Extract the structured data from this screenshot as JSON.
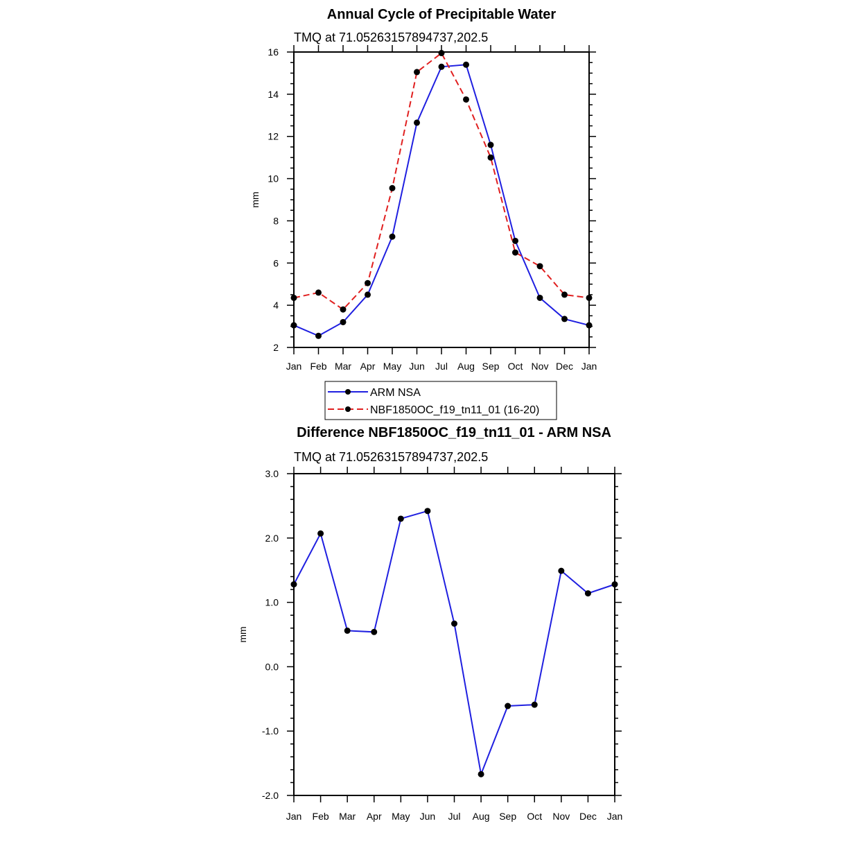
{
  "chart_data": [
    {
      "type": "line",
      "title": "Annual Cycle of Precipitable Water",
      "subtitle": "TMQ at 71.05263157894737,202.5",
      "xlabel": "",
      "ylabel": "mm",
      "categories": [
        "Jan",
        "Feb",
        "Mar",
        "Apr",
        "May",
        "Jun",
        "Jul",
        "Aug",
        "Sep",
        "Oct",
        "Nov",
        "Dec",
        "Jan"
      ],
      "ylim": [
        2,
        16
      ],
      "yticks": [
        "2",
        "4",
        "6",
        "8",
        "10",
        "12",
        "14",
        "16"
      ],
      "grid": false,
      "legend_position": "below",
      "series": [
        {
          "name": "ARM NSA",
          "color": "#1f1fe0",
          "style": "solid",
          "values": [
            3.05,
            2.55,
            3.2,
            4.5,
            7.25,
            12.65,
            15.3,
            15.4,
            11.6,
            7.05,
            4.35,
            3.35,
            3.05
          ]
        },
        {
          "name": "NBF1850OC_f19_tn11_01 (16-20)",
          "color": "#e01f1f",
          "style": "dashed",
          "values": [
            4.35,
            4.6,
            3.8,
            5.05,
            9.55,
            15.05,
            15.95,
            13.75,
            11.0,
            6.5,
            5.85,
            4.5,
            4.35
          ]
        }
      ]
    },
    {
      "type": "line",
      "title": "Difference NBF1850OC_f19_tn11_01 - ARM NSA",
      "subtitle": "TMQ at 71.05263157894737,202.5",
      "xlabel": "",
      "ylabel": "mm",
      "categories": [
        "Jan",
        "Feb",
        "Mar",
        "Apr",
        "May",
        "Jun",
        "Jul",
        "Aug",
        "Sep",
        "Oct",
        "Nov",
        "Dec",
        "Jan"
      ],
      "ylim": [
        -2.0,
        3.0
      ],
      "yticks": [
        "-2.0",
        "-1.0",
        "0.0",
        "1.0",
        "2.0",
        "3.0"
      ],
      "grid": false,
      "series": [
        {
          "color": "#1f1fe0",
          "style": "solid",
          "values": [
            1.28,
            2.07,
            0.56,
            0.54,
            2.3,
            2.42,
            0.67,
            -1.67,
            -0.61,
            -0.59,
            1.49,
            1.14,
            1.28
          ]
        }
      ]
    }
  ]
}
